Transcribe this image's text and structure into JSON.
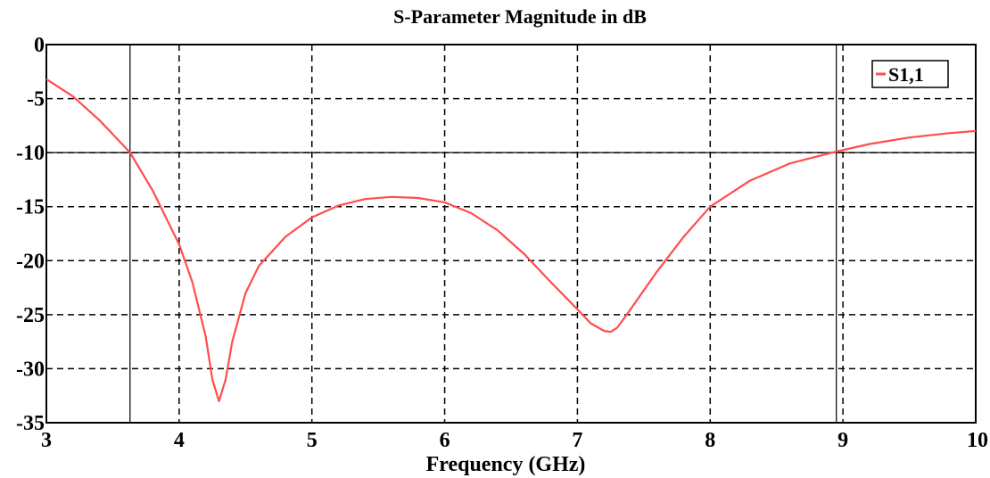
{
  "chart_data": {
    "type": "line",
    "title": "S-Parameter Magnitude in dB",
    "xlabel": "Frequency (GHz)",
    "ylabel": "",
    "xlim": [
      3,
      10
    ],
    "ylim": [
      -35,
      0
    ],
    "x_ticks": [
      "3",
      "4",
      "5",
      "6",
      "7",
      "8",
      "9",
      "10"
    ],
    "y_ticks": [
      "0",
      "-5",
      "-10",
      "-15",
      "-20",
      "-25",
      "-30",
      "-35"
    ],
    "grid": true,
    "legend_position": "top-right",
    "reference_lines": {
      "horizontal_y": -10,
      "vertical_x": [
        3.63,
        8.95
      ]
    },
    "series": [
      {
        "name": "S1,1",
        "color": "#ff4d4d",
        "x": [
          3.0,
          3.2,
          3.4,
          3.6,
          3.63,
          3.8,
          4.0,
          4.1,
          4.2,
          4.25,
          4.3,
          4.35,
          4.4,
          4.5,
          4.6,
          4.8,
          5.0,
          5.2,
          5.4,
          5.6,
          5.8,
          6.0,
          6.2,
          6.4,
          6.6,
          6.8,
          7.0,
          7.1,
          7.2,
          7.25,
          7.3,
          7.4,
          7.6,
          7.8,
          8.0,
          8.3,
          8.6,
          8.95,
          9.2,
          9.5,
          9.8,
          10.0
        ],
        "values": [
          -3.2,
          -4.8,
          -7.0,
          -9.6,
          -10.0,
          -13.5,
          -18.5,
          -22.0,
          -27.0,
          -31.0,
          -33.0,
          -31.0,
          -27.5,
          -23.0,
          -20.5,
          -17.8,
          -16.0,
          -14.9,
          -14.3,
          -14.1,
          -14.2,
          -14.6,
          -15.6,
          -17.2,
          -19.4,
          -22.0,
          -24.5,
          -25.8,
          -26.5,
          -26.6,
          -26.2,
          -24.5,
          -21.0,
          -17.8,
          -15.0,
          -12.6,
          -11.0,
          -9.9,
          -9.2,
          -8.6,
          -8.2,
          -8.0
        ]
      }
    ]
  }
}
